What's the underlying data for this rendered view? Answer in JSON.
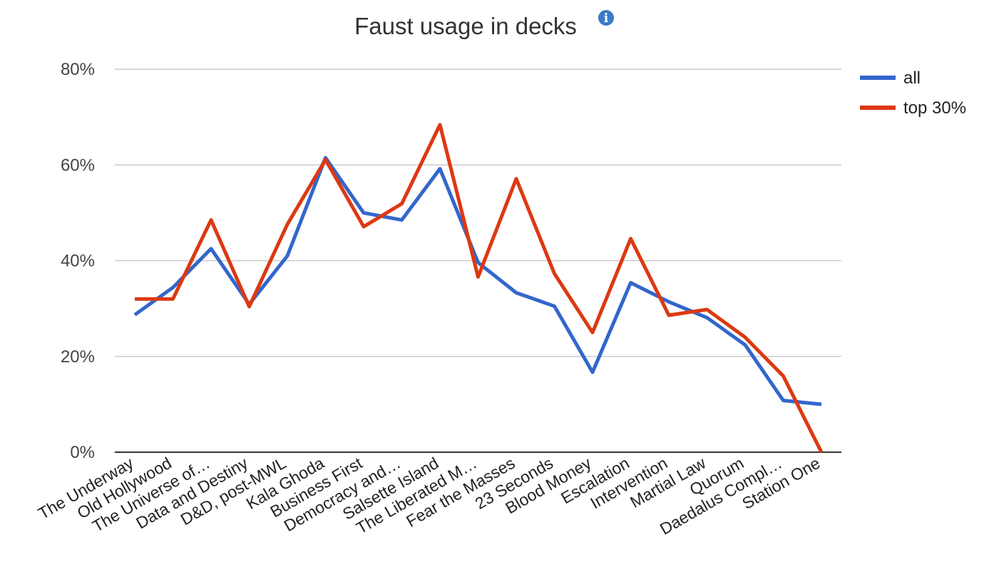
{
  "chart_data": {
    "type": "line",
    "title": "Faust usage in decks",
    "title_icon": "info-icon",
    "xlabel": "",
    "ylabel": "",
    "ylim": [
      0,
      80
    ],
    "y_ticks": [
      "0%",
      "20%",
      "40%",
      "60%",
      "80%"
    ],
    "y_tick_values": [
      0,
      20,
      40,
      60,
      80
    ],
    "grid": true,
    "legend_position": "right",
    "categories": [
      "The Underway",
      "Old Hollywood",
      "The Universe of…",
      "Data and Destiny",
      "D&D, post-MWL",
      "Kala Ghoda",
      "Business First",
      "Democracy and…",
      "Salsette Island",
      "The Liberated M…",
      "Fear the Masses",
      "23 Seconds",
      "Blood Money",
      "Escalation",
      "Intervention",
      "Martial Law",
      "Quorum",
      "Daedalus Compl…",
      "Station One"
    ],
    "series": [
      {
        "name": "all",
        "color": "#3366cc",
        "values": [
          28.7,
          34.4,
          42.5,
          30.9,
          41.0,
          61.5,
          50.0,
          48.5,
          59.2,
          39.6,
          33.3,
          30.5,
          16.7,
          35.4,
          31.4,
          28.1,
          22.4,
          10.8,
          10.0
        ]
      },
      {
        "name": "top 30%",
        "color": "#dc3912",
        "values": [
          32.0,
          32.0,
          48.5,
          30.4,
          47.6,
          61.1,
          47.1,
          51.9,
          68.4,
          36.6,
          57.1,
          37.3,
          25.0,
          44.6,
          28.6,
          29.8,
          24.0,
          15.9,
          0.0
        ]
      }
    ]
  }
}
